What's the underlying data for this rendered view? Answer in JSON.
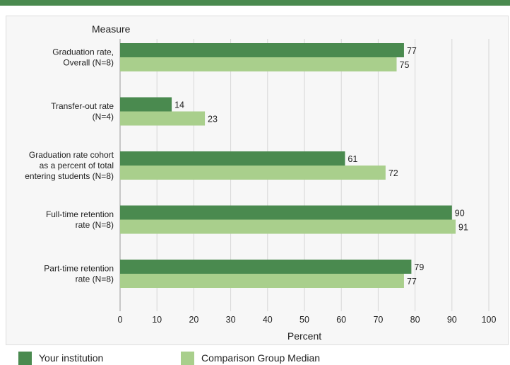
{
  "header": {
    "accent": "#4a8a4f"
  },
  "chart_data": {
    "type": "bar",
    "orientation": "horizontal",
    "ylabel": "Measure",
    "xlabel": "Percent",
    "xlim": [
      0,
      100
    ],
    "xticks": [
      0,
      10,
      20,
      30,
      40,
      50,
      60,
      70,
      80,
      90,
      100
    ],
    "categories": [
      [
        "Graduation rate,",
        "Overall (N=8)"
      ],
      [
        "Transfer-out rate",
        "(N=4)"
      ],
      [
        "Graduation rate cohort",
        "as a percent of total",
        "entering students (N=8)"
      ],
      [
        "Full-time retention",
        "rate (N=8)"
      ],
      [
        "Part-time retention",
        "rate (N=8)"
      ]
    ],
    "series": [
      {
        "name": "Your institution",
        "color": "#4a8a4f",
        "values": [
          77,
          14,
          61,
          90,
          79
        ]
      },
      {
        "name": "Comparison Group Median",
        "color": "#a9cf8c",
        "values": [
          75,
          23,
          72,
          91,
          77
        ]
      }
    ],
    "grid": true,
    "legend": "bottom"
  }
}
